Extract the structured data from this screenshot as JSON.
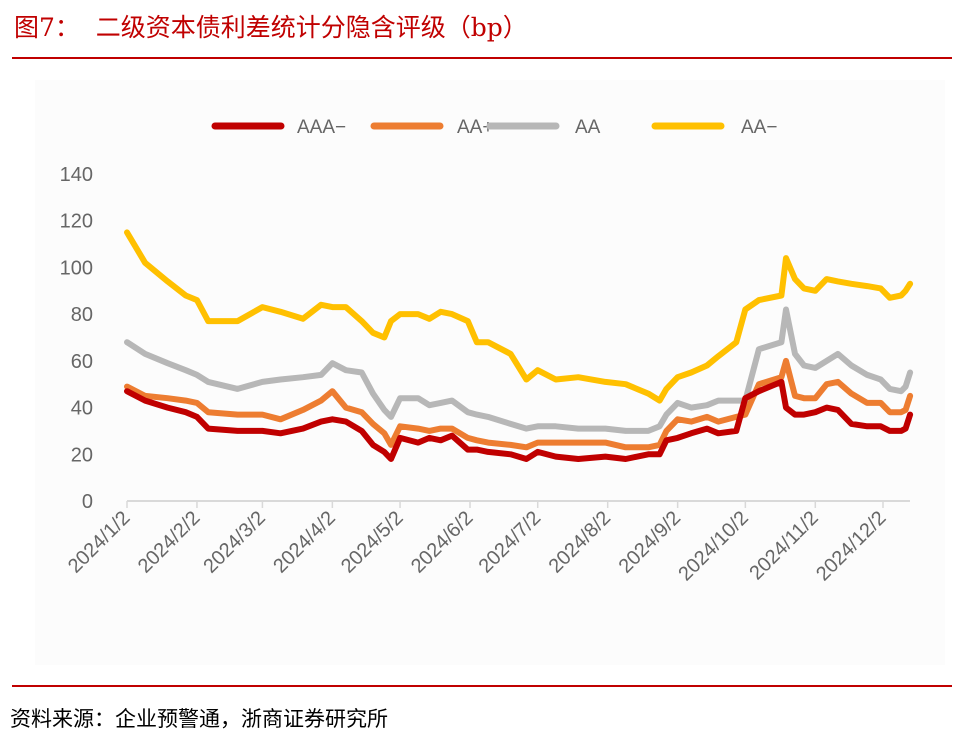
{
  "title": "图7：  二级资本债利差统计分隐含评级（bp）",
  "source": "资料来源：企业预警通，浙商证券研究所",
  "chart_data": {
    "type": "line",
    "title": "二级资本债利差统计分隐含评级（bp）",
    "xlabel": "",
    "ylabel": "",
    "ylim": [
      0,
      140
    ],
    "yticks": [
      "0",
      "20",
      "40",
      "60",
      "80",
      "100",
      "120",
      "140"
    ],
    "xtick_labels": [
      "2024/1/2",
      "2024/2/2",
      "2024/3/2",
      "2024/4/2",
      "2024/5/2",
      "2024/6/2",
      "2024/7/2",
      "2024/8/2",
      "2024/9/2",
      "2024/10/2",
      "2024/11/2",
      "2024/12/2"
    ],
    "grid": false,
    "legend_position": "top",
    "x": [
      "2024-01-02",
      "2024-01-10",
      "2024-01-20",
      "2024-01-28",
      "2024-02-02",
      "2024-02-07",
      "2024-02-20",
      "2024-03-02",
      "2024-03-10",
      "2024-03-20",
      "2024-03-28",
      "2024-04-02",
      "2024-04-08",
      "2024-04-15",
      "2024-04-20",
      "2024-04-25",
      "2024-04-28",
      "2024-05-02",
      "2024-05-10",
      "2024-05-15",
      "2024-05-20",
      "2024-05-25",
      "2024-06-01",
      "2024-06-05",
      "2024-06-10",
      "2024-06-20",
      "2024-06-27",
      "2024-07-02",
      "2024-07-10",
      "2024-07-20",
      "2024-08-01",
      "2024-08-10",
      "2024-08-20",
      "2024-08-25",
      "2024-08-28",
      "2024-09-02",
      "2024-09-08",
      "2024-09-15",
      "2024-09-20",
      "2024-09-28",
      "2024-10-02",
      "2024-10-08",
      "2024-10-18",
      "2024-10-20",
      "2024-10-24",
      "2024-10-28",
      "2024-11-02",
      "2024-11-07",
      "2024-11-12",
      "2024-11-18",
      "2024-11-25",
      "2024-12-01",
      "2024-12-05",
      "2024-12-10",
      "2024-12-12",
      "2024-12-14"
    ],
    "series": [
      {
        "name": "AAA−",
        "color": "#c00000",
        "values": [
          47,
          43,
          40,
          38,
          36,
          31,
          30,
          30,
          29,
          31,
          34,
          35,
          34,
          30,
          24,
          21,
          18,
          27,
          25,
          27,
          26,
          28,
          22,
          22,
          21,
          20,
          18,
          21,
          19,
          18,
          19,
          18,
          20,
          20,
          26,
          27,
          29,
          31,
          29,
          30,
          44,
          47,
          51,
          40,
          37,
          37,
          38,
          40,
          39,
          33,
          32,
          32,
          30,
          30,
          31,
          37
        ]
      },
      {
        "name": "AA+",
        "color": "#ed7d31",
        "values": [
          49,
          45,
          44,
          43,
          42,
          38,
          37,
          37,
          35,
          39,
          43,
          47,
          40,
          38,
          33,
          29,
          24,
          32,
          31,
          30,
          31,
          31,
          27,
          26,
          25,
          24,
          23,
          25,
          25,
          25,
          25,
          23,
          23,
          24,
          30,
          35,
          34,
          36,
          34,
          36,
          37,
          50,
          53,
          60,
          45,
          44,
          44,
          50,
          51,
          46,
          42,
          42,
          38,
          38,
          39,
          45
        ]
      },
      {
        "name": "AA",
        "color": "#b7b7b7",
        "values": [
          68,
          63,
          59,
          56,
          54,
          51,
          48,
          51,
          52,
          53,
          54,
          59,
          56,
          55,
          46,
          39,
          36,
          44,
          44,
          41,
          42,
          43,
          38,
          37,
          36,
          33,
          31,
          32,
          32,
          31,
          31,
          30,
          30,
          32,
          37,
          42,
          40,
          41,
          43,
          43,
          43,
          65,
          68,
          82,
          63,
          58,
          57,
          60,
          63,
          58,
          54,
          52,
          48,
          47,
          49,
          55
        ]
      },
      {
        "name": "AA−",
        "color": "#ffc000",
        "values": [
          115,
          102,
          94,
          88,
          86,
          77,
          77,
          83,
          81,
          78,
          84,
          83,
          83,
          77,
          72,
          70,
          77,
          80,
          80,
          78,
          81,
          80,
          77,
          68,
          68,
          63,
          52,
          56,
          52,
          53,
          51,
          50,
          46,
          43,
          48,
          53,
          55,
          58,
          62,
          68,
          82,
          86,
          88,
          104,
          95,
          91,
          90,
          95,
          94,
          93,
          92,
          91,
          87,
          88,
          90,
          93
        ]
      }
    ]
  }
}
